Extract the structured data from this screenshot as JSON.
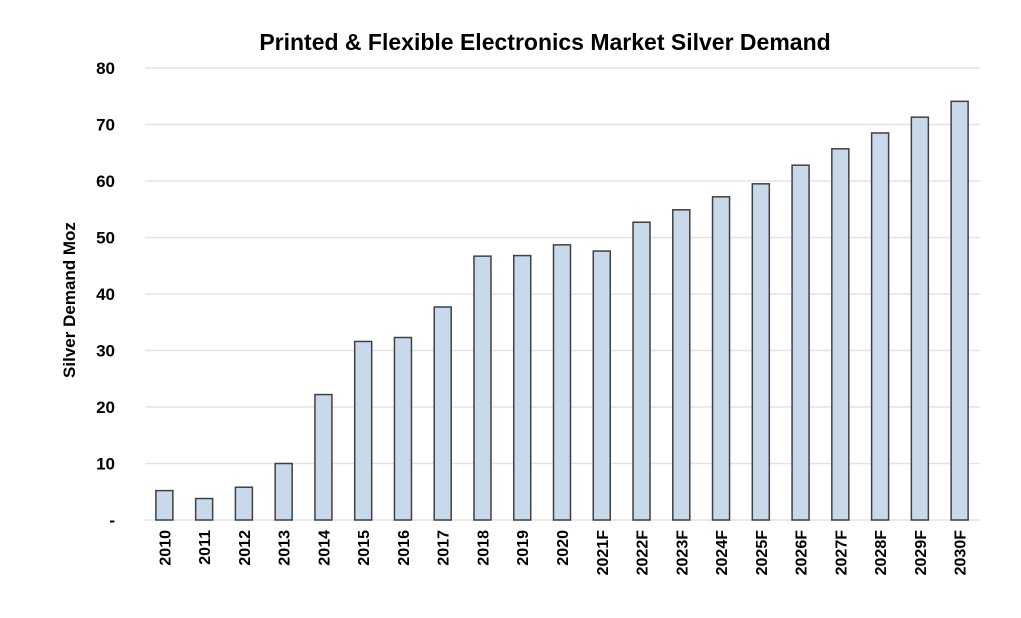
{
  "chart_data": {
    "type": "bar",
    "title": "Printed & Flexible Electronics Market  Silver Demand",
    "xlabel": "",
    "ylabel": "Silver Demand Moz",
    "ylim": [
      0,
      80
    ],
    "yticks": [
      0,
      10,
      20,
      30,
      40,
      50,
      60,
      70,
      80
    ],
    "ytick_labels": [
      "-",
      "10",
      "20",
      "30",
      "40",
      "50",
      "60",
      "70",
      "80"
    ],
    "grid": true,
    "bar_color": "#c9d9ec",
    "bar_edge_color": "#404040",
    "categories": [
      "2010",
      "2011",
      "2012",
      "2013",
      "2014",
      "2015",
      "2016",
      "2017",
      "2018",
      "2019",
      "2020",
      "2021F",
      "2022F",
      "2023F",
      "2024F",
      "2025F",
      "2026F",
      "2027F",
      "2028F",
      "2029F",
      "2030F"
    ],
    "values": [
      5.2,
      3.8,
      5.8,
      10.0,
      22.2,
      31.6,
      32.3,
      37.7,
      46.7,
      46.8,
      48.7,
      47.6,
      52.7,
      54.9,
      57.2,
      59.5,
      62.8,
      65.7,
      68.5,
      71.3,
      74.1
    ]
  }
}
